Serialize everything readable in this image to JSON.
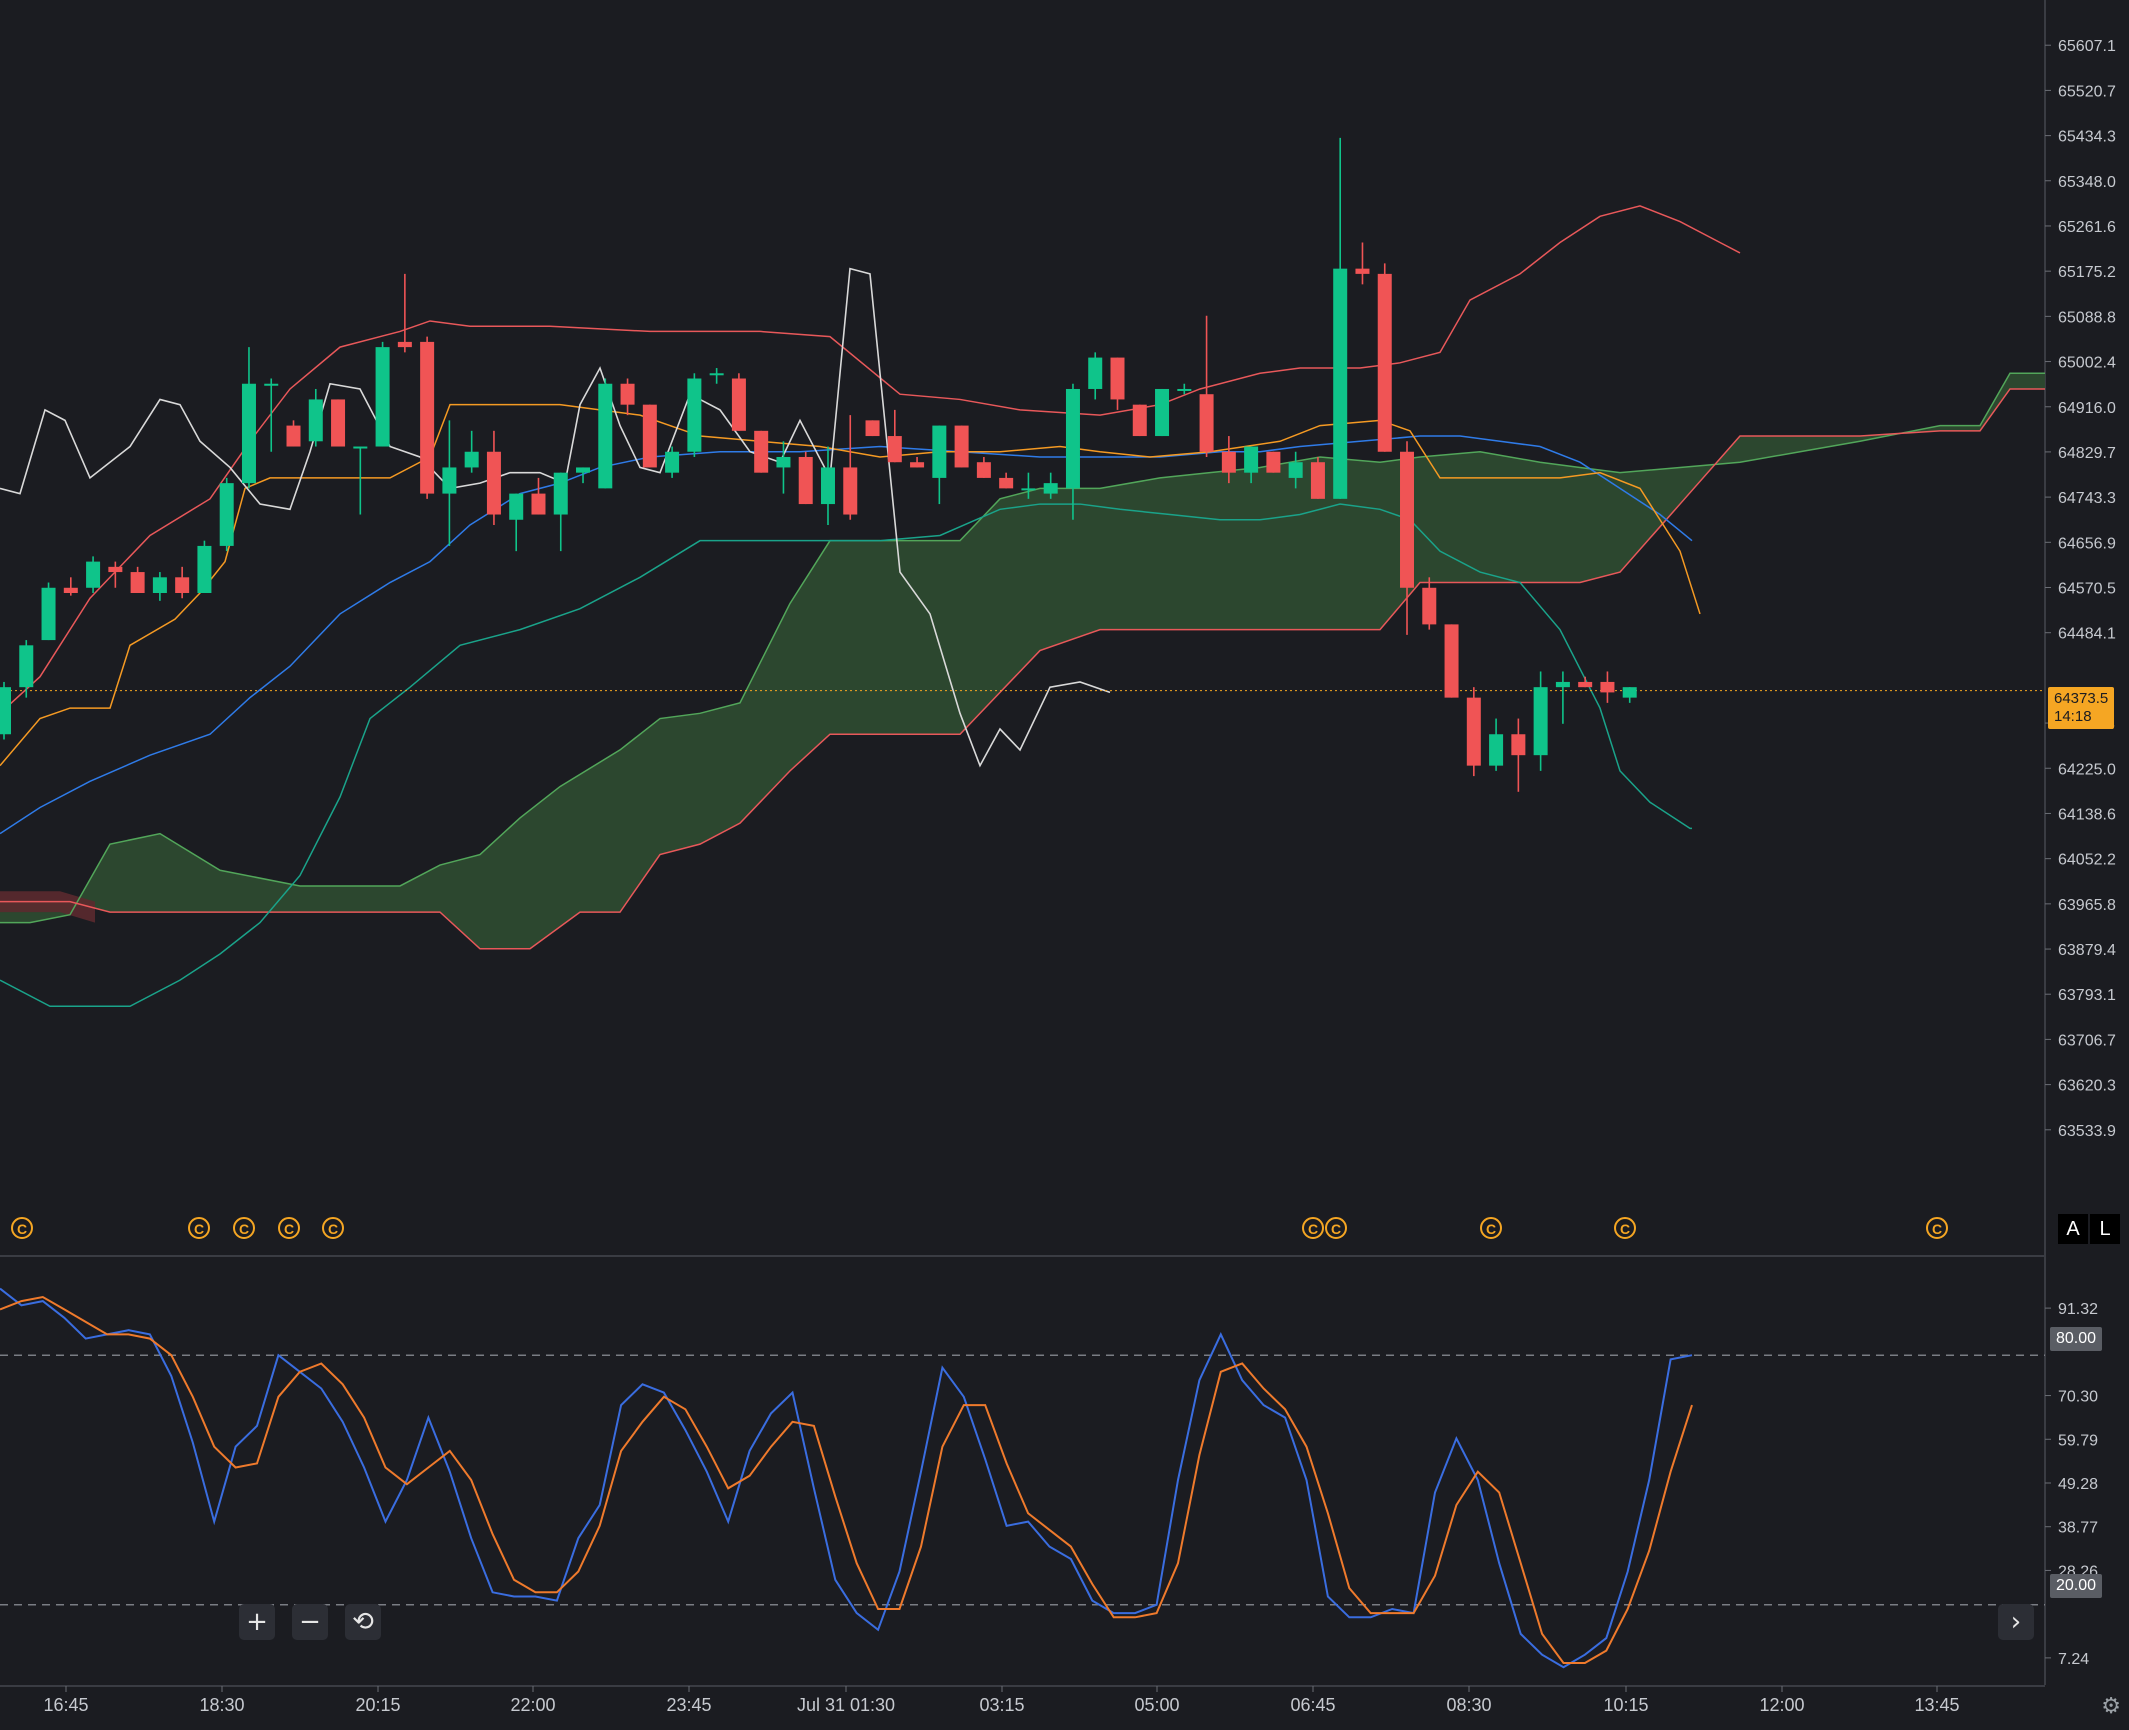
{
  "chart_data": [
    {
      "type": "candlestick",
      "panel": "price",
      "current_price": {
        "value": "64373.5",
        "countdown": "14:18"
      },
      "y_axis_ticks": [
        "65607.1",
        "65520.7",
        "65434.3",
        "65348.0",
        "65261.6",
        "65175.2",
        "65088.8",
        "65002.4",
        "64916.0",
        "64829.7",
        "64743.3",
        "64656.9",
        "64570.5",
        "64484.1",
        "64311.4",
        "64225.0",
        "64138.6",
        "64052.2",
        "63965.8",
        "63879.4",
        "63793.1",
        "63706.7",
        "63620.3",
        "63533.9"
      ],
      "ylim": [
        63480,
        65640
      ],
      "candles": [
        [
          64290,
          64390,
          64280,
          64380
        ],
        [
          64380,
          64470,
          64360,
          64460
        ],
        [
          64470,
          64580,
          64470,
          64570
        ],
        [
          64570,
          64590,
          64555,
          64560
        ],
        [
          64570,
          64630,
          64560,
          64620
        ],
        [
          64610,
          64620,
          64570,
          64600
        ],
        [
          64600,
          64610,
          64560,
          64560
        ],
        [
          64560,
          64600,
          64545,
          64590
        ],
        [
          64590,
          64610,
          64550,
          64560
        ],
        [
          64560,
          64660,
          64560,
          64650
        ],
        [
          64650,
          64780,
          64640,
          64770
        ],
        [
          64770,
          65030,
          64760,
          64960
        ],
        [
          64960,
          64970,
          64830,
          64960
        ],
        [
          64880,
          64890,
          64840,
          64840
        ],
        [
          64850,
          64950,
          64840,
          64930
        ],
        [
          64930,
          64930,
          64840,
          64840
        ],
        [
          64840,
          64840,
          64710,
          64840
        ],
        [
          64840,
          65040,
          64840,
          65030
        ],
        [
          65040,
          65170,
          65020,
          65030
        ],
        [
          65040,
          65050,
          64740,
          64750
        ],
        [
          64750,
          64890,
          64650,
          64800
        ],
        [
          64800,
          64870,
          64790,
          64830
        ],
        [
          64830,
          64870,
          64690,
          64710
        ],
        [
          64700,
          64750,
          64640,
          64750
        ],
        [
          64750,
          64780,
          64710,
          64710
        ],
        [
          64710,
          64790,
          64640,
          64790
        ],
        [
          64790,
          64800,
          64770,
          64800
        ],
        [
          64760,
          64970,
          64760,
          64960
        ],
        [
          64960,
          64970,
          64900,
          64920
        ],
        [
          64920,
          64920,
          64800,
          64800
        ],
        [
          64790,
          64840,
          64780,
          64830
        ],
        [
          64830,
          64980,
          64820,
          64970
        ],
        [
          64980,
          64990,
          64960,
          64980
        ],
        [
          64970,
          64980,
          64870,
          64870
        ],
        [
          64870,
          64870,
          64790,
          64790
        ],
        [
          64800,
          64850,
          64750,
          64820
        ],
        [
          64820,
          64830,
          64730,
          64730
        ],
        [
          64730,
          64840,
          64690,
          64800
        ],
        [
          64800,
          64900,
          64700,
          64710
        ],
        [
          64890,
          64890,
          64860,
          64860
        ],
        [
          64860,
          64910,
          64810,
          64810
        ],
        [
          64810,
          64820,
          64800,
          64800
        ],
        [
          64780,
          64880,
          64730,
          64880
        ],
        [
          64880,
          64880,
          64800,
          64800
        ],
        [
          64810,
          64820,
          64780,
          64780
        ],
        [
          64780,
          64790,
          64760,
          64760
        ],
        [
          64760,
          64790,
          64740,
          64760
        ],
        [
          64750,
          64790,
          64740,
          64770
        ],
        [
          64760,
          64960,
          64700,
          64950
        ],
        [
          64950,
          65020,
          64930,
          65010
        ],
        [
          65010,
          65010,
          64910,
          64930
        ],
        [
          64920,
          64920,
          64860,
          64860
        ],
        [
          64860,
          64950,
          64860,
          64950
        ],
        [
          64950,
          64960,
          64940,
          64950
        ],
        [
          64940,
          65090,
          64820,
          64830
        ],
        [
          64830,
          64860,
          64770,
          64790
        ],
        [
          64790,
          64840,
          64770,
          64840
        ],
        [
          64830,
          64830,
          64790,
          64790
        ],
        [
          64780,
          64830,
          64760,
          64810
        ],
        [
          64810,
          64820,
          64740,
          64740
        ],
        [
          64740,
          65430,
          64740,
          65180
        ],
        [
          65180,
          65230,
          65150,
          65170
        ],
        [
          65170,
          65190,
          64830,
          64830
        ],
        [
          64830,
          64850,
          64480,
          64570
        ],
        [
          64570,
          64590,
          64490,
          64500
        ],
        [
          64500,
          64500,
          64360,
          64360
        ],
        [
          64360,
          64380,
          64210,
          64230
        ],
        [
          64230,
          64320,
          64220,
          64290
        ],
        [
          64290,
          64320,
          64180,
          64250
        ],
        [
          64250,
          64410,
          64220,
          64380
        ],
        [
          64380,
          64410,
          64310,
          64390
        ],
        [
          64390,
          64400,
          64380,
          64380
        ],
        [
          64390,
          64410,
          64350,
          64370
        ],
        [
          64360,
          64380,
          64350,
          64380
        ]
      ],
      "events": [
        "C",
        "C",
        "C",
        "C",
        "C",
        "C",
        "C",
        "C",
        "C",
        "C"
      ]
    },
    {
      "type": "line",
      "panel": "oscillator",
      "y_axis_ticks": [
        "91.32",
        "70.30",
        "59.79",
        "49.28",
        "38.77",
        "28.26",
        "7.24"
      ],
      "levels": [
        "80.00",
        "20.00"
      ],
      "ylim": [
        0,
        100
      ],
      "series": [
        {
          "values": [
            96,
            92,
            93,
            89,
            84,
            85,
            86,
            85,
            75,
            59,
            40,
            58,
            63,
            80,
            76,
            72,
            64,
            53,
            40,
            50,
            65,
            52,
            36,
            23,
            22,
            22,
            21,
            36,
            44,
            68,
            73,
            71,
            62,
            52,
            40,
            57,
            66,
            71,
            48,
            26,
            18,
            14,
            28,
            52,
            77,
            70,
            55,
            39,
            40,
            34,
            31,
            21,
            18,
            18,
            20,
            50,
            74,
            85,
            74,
            68,
            65,
            50,
            22,
            17,
            17,
            19,
            18,
            47,
            60,
            50,
            30,
            13,
            8,
            5,
            8,
            12,
            28,
            50,
            79,
            80
          ]
        },
        {
          "values": [
            91,
            93,
            94,
            91,
            88,
            85,
            85,
            84,
            80,
            70,
            58,
            53,
            54,
            70,
            76,
            78,
            73,
            65,
            53,
            49,
            53,
            57,
            50,
            37,
            26,
            23,
            23,
            28,
            39,
            57,
            64,
            70,
            67,
            58,
            48,
            51,
            58,
            64,
            63,
            46,
            30,
            19,
            19,
            34,
            58,
            68,
            68,
            54,
            42,
            38,
            34,
            25,
            17,
            17,
            18,
            30,
            56,
            76,
            78,
            72,
            67,
            58,
            42,
            24,
            18,
            18,
            18,
            27,
            44,
            52,
            47,
            30,
            13,
            6,
            6,
            9,
            19,
            33,
            52,
            68
          ]
        }
      ]
    }
  ],
  "x_axis_labels": [
    "16:45",
    "18:30",
    "20:15",
    "22:00",
    "23:45",
    "Jul 31 01:30",
    "03:15",
    "05:00",
    "06:45",
    "08:30",
    "10:15",
    "12:00",
    "13:45"
  ],
  "controls": {
    "zoom_in": "+",
    "zoom_out": "−",
    "reset": "⟲",
    "scroll_right": "›",
    "auto_scale": "A",
    "log_scale": "L"
  },
  "colors": {
    "background": "#1b1c21",
    "up": "#0fc48a",
    "down": "#f05455",
    "cloud_bull": "#2d4a30",
    "cloud_bear": "#5b2a2f",
    "kumo_a": "#52a65a",
    "kumo_b": "#e8585a",
    "tenkan": "#2f7be8",
    "kijun": "#f59a23",
    "chikou": "#d9d9d9",
    "bb_upper": "#e8585a",
    "bb_lower": "#1aa38a",
    "stoch_k": "#3a6de0",
    "stoch_d": "#ef7a2c",
    "price_tag": "#f5a623"
  }
}
